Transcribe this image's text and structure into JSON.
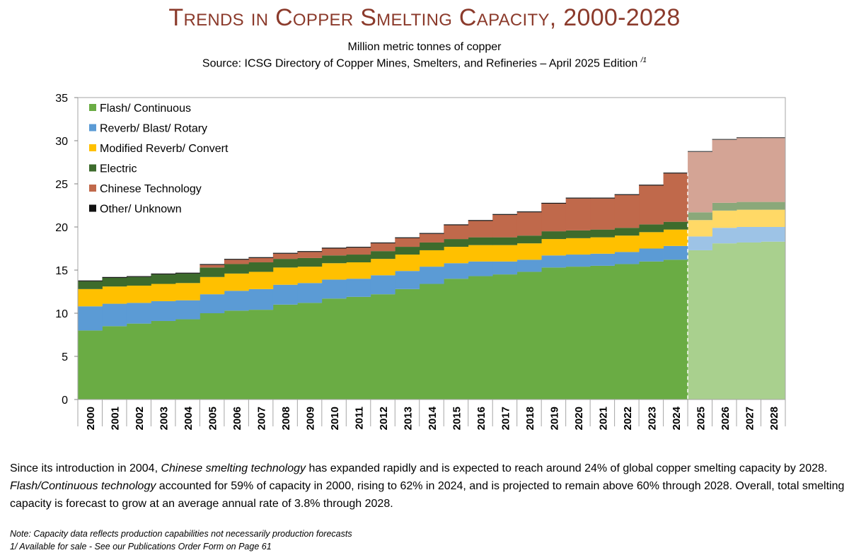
{
  "header": {
    "title": "Trends in Copper Smelting Capacity, 2000-2028",
    "subtitle": "Million metric tonnes of copper",
    "source": "Source: ICSG Directory of Copper Mines, Smelters, and Refineries – April 2025 Edition",
    "source_footnote_mark": "/1"
  },
  "chart_data": {
    "type": "area",
    "stacked": true,
    "categories": [
      "2000",
      "2001",
      "2002",
      "2003",
      "2004",
      "2005",
      "2006",
      "2007",
      "2008",
      "2009",
      "2010",
      "2011",
      "2012",
      "2013",
      "2014",
      "2015",
      "2016",
      "2017",
      "2018",
      "2019",
      "2020",
      "2021",
      "2022",
      "2023",
      "2024",
      "2025",
      "2026",
      "2027",
      "2028"
    ],
    "forecast_start": "2025",
    "ylim": [
      0,
      35
    ],
    "yticks": [
      0,
      5,
      10,
      15,
      20,
      25,
      30,
      35
    ],
    "grid": false,
    "legend_position": "top-left",
    "series": [
      {
        "name": "Flash/ Continuous",
        "color": "#6aac44",
        "forecast_color": "#a9d08e",
        "values": [
          8.0,
          8.5,
          8.8,
          9.1,
          9.3,
          10.0,
          10.3,
          10.4,
          11.0,
          11.2,
          11.7,
          11.9,
          12.2,
          12.8,
          13.4,
          14.0,
          14.3,
          14.5,
          14.8,
          15.3,
          15.4,
          15.5,
          15.7,
          16.0,
          16.2,
          17.3,
          18.1,
          18.2,
          18.3
        ]
      },
      {
        "name": "Reverb/ Blast/ Rotary",
        "color": "#5b9bd5",
        "forecast_color": "#9dc3e6",
        "values": [
          2.8,
          2.6,
          2.4,
          2.3,
          2.2,
          2.2,
          2.3,
          2.4,
          2.3,
          2.3,
          2.2,
          2.1,
          2.2,
          2.1,
          2.0,
          1.8,
          1.7,
          1.5,
          1.4,
          1.4,
          1.4,
          1.4,
          1.4,
          1.5,
          1.6,
          1.6,
          1.8,
          1.8,
          1.7
        ]
      },
      {
        "name": "Modified Reverb/ Convert",
        "color": "#ffc000",
        "forecast_color": "#ffd966",
        "values": [
          2.0,
          2.0,
          2.0,
          2.0,
          2.0,
          2.0,
          2.0,
          2.0,
          2.0,
          1.9,
          1.9,
          1.9,
          1.9,
          1.9,
          1.9,
          1.9,
          1.9,
          1.9,
          1.9,
          1.9,
          1.9,
          1.9,
          1.9,
          1.9,
          1.9,
          1.9,
          2.0,
          2.0,
          2.0
        ]
      },
      {
        "name": "Electric",
        "color": "#3d6b2c",
        "forecast_color": "#8aa87a",
        "values": [
          0.9,
          1.0,
          1.0,
          1.1,
          1.1,
          1.1,
          1.1,
          1.1,
          1.0,
          1.0,
          0.9,
          0.9,
          0.9,
          0.9,
          0.9,
          0.9,
          0.9,
          0.9,
          0.9,
          0.9,
          0.9,
          0.9,
          0.9,
          0.9,
          0.9,
          0.9,
          0.9,
          0.9,
          0.9
        ]
      },
      {
        "name": "Chinese Technology",
        "color": "#c0694b",
        "forecast_color": "#d4a495",
        "values": [
          0,
          0,
          0,
          0,
          0,
          0.3,
          0.5,
          0.5,
          0.6,
          0.7,
          0.8,
          0.8,
          0.9,
          1.0,
          1.0,
          1.6,
          1.9,
          2.6,
          2.7,
          3.2,
          3.7,
          3.6,
          3.8,
          4.5,
          5.6,
          7.0,
          7.3,
          7.4,
          7.4
        ]
      },
      {
        "name": "Other/ Unknown",
        "color": "#111111",
        "forecast_color": "#444444",
        "values": [
          0.1,
          0.1,
          0.1,
          0.1,
          0.1,
          0.1,
          0.1,
          0.1,
          0.1,
          0.1,
          0.1,
          0.1,
          0.1,
          0.1,
          0.1,
          0.1,
          0.1,
          0.1,
          0.1,
          0.1,
          0.1,
          0.1,
          0.1,
          0.1,
          0.1,
          0.1,
          0.1,
          0.1,
          0.1
        ]
      }
    ]
  },
  "body": {
    "para_1": "Since its introduction in 2004, ",
    "para_2": "Chinese smelting technology",
    "para_3": " has expanded rapidly and is expected to reach around 24% of global copper smelting capacity by 2028. ",
    "para_4": "Flash/Continuous technology",
    "para_5": " accounted for 59% of capacity in 2000, rising to 62% in 2024, and is projected to remain above 60% through 2028. Overall, total smelting capacity is forecast to grow at an average annual rate of 3.8% through 2028."
  },
  "notes": {
    "note": "Note: Capacity data reflects production capabilities not necessarily production forecasts",
    "footnote": "1/ Available for sale - See our Publications Order Form on Page 61"
  }
}
